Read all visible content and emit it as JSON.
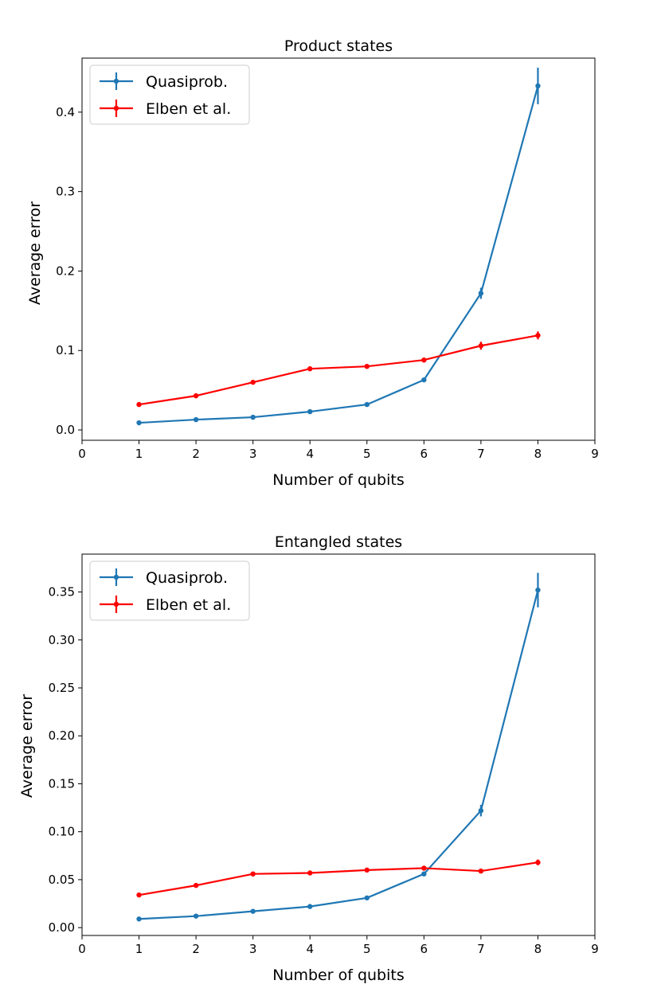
{
  "colors": {
    "quasiprob": "#1f77b4",
    "elben": "#ff0000"
  },
  "chart_data": [
    {
      "type": "line",
      "title": "Product states",
      "xlabel": "Number of qubits",
      "ylabel": "Average error",
      "xlim": [
        0,
        9
      ],
      "ylim": [
        -0.013,
        0.468
      ],
      "xticks": [
        0,
        1,
        2,
        3,
        4,
        5,
        6,
        7,
        8,
        9
      ],
      "yticks": [
        0.0,
        0.1,
        0.2,
        0.3,
        0.4
      ],
      "ytick_labels": [
        "0.0",
        "0.1",
        "0.2",
        "0.3",
        "0.4"
      ],
      "legend_position": "top-left",
      "x": [
        1,
        2,
        3,
        4,
        5,
        6,
        7,
        8
      ],
      "series": [
        {
          "name": "Quasiprob.",
          "color": "#1f77b4",
          "values": [
            0.009,
            0.013,
            0.016,
            0.023,
            0.032,
            0.063,
            0.172,
            0.433
          ],
          "errors": [
            0.001,
            0.001,
            0.001,
            0.001,
            0.002,
            0.002,
            0.007,
            0.023
          ]
        },
        {
          "name": "Elben et al.",
          "color": "#ff0000",
          "values": [
            0.032,
            0.043,
            0.06,
            0.077,
            0.08,
            0.088,
            0.106,
            0.119
          ],
          "errors": [
            0.001,
            0.001,
            0.001,
            0.002,
            0.002,
            0.003,
            0.005,
            0.005
          ]
        }
      ]
    },
    {
      "type": "line",
      "title": "Entangled states",
      "xlabel": "Number of qubits",
      "ylabel": "Average error",
      "xlim": [
        0,
        9
      ],
      "ylim": [
        -0.0082,
        0.3895
      ],
      "xticks": [
        0,
        1,
        2,
        3,
        4,
        5,
        6,
        7,
        8,
        9
      ],
      "yticks": [
        0.0,
        0.05,
        0.1,
        0.15,
        0.2,
        0.25,
        0.3,
        0.35
      ],
      "ytick_labels": [
        "0.00",
        "0.05",
        "0.10",
        "0.15",
        "0.20",
        "0.25",
        "0.30",
        "0.35"
      ],
      "legend_position": "top-left",
      "x": [
        1,
        2,
        3,
        4,
        5,
        6,
        7,
        8
      ],
      "series": [
        {
          "name": "Quasiprob.",
          "color": "#1f77b4",
          "values": [
            0.009,
            0.012,
            0.017,
            0.022,
            0.031,
            0.056,
            0.122,
            0.352
          ],
          "errors": [
            0.001,
            0.001,
            0.001,
            0.001,
            0.001,
            0.002,
            0.006,
            0.018
          ]
        },
        {
          "name": "Elben et al.",
          "color": "#ff0000",
          "values": [
            0.034,
            0.044,
            0.056,
            0.057,
            0.06,
            0.062,
            0.059,
            0.068
          ],
          "errors": [
            0.001,
            0.001,
            0.001,
            0.001,
            0.001,
            0.002,
            0.002,
            0.003
          ]
        }
      ]
    }
  ]
}
